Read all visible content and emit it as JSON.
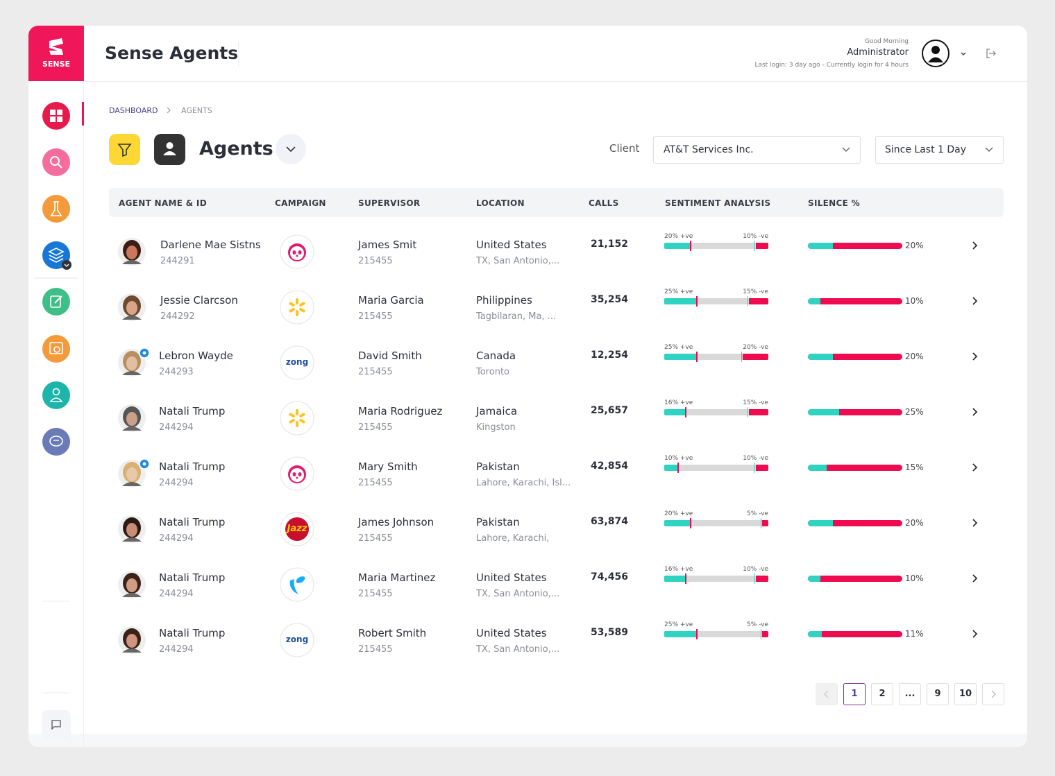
{
  "brand": "SENSE",
  "header": {
    "title": "Sense Agents",
    "greeting": "Good Morning",
    "user": "Administrator",
    "status": "Last login: 3 day ago  -  Currently login for 4 hours"
  },
  "breadcrumb": [
    "DASHBOARD",
    "AGENTS"
  ],
  "page": {
    "title": "Agents",
    "client_label": "Client",
    "client": "AT&T Services Inc.",
    "period": "Since Last 1 Day"
  },
  "table": {
    "columns": [
      "AGENT NAME & ID",
      "CAMPAIGN",
      "SUPERVISOR",
      "LOCATION",
      "CALLS",
      "SENTIMENT ANALYSIS",
      "SILENCE %"
    ],
    "rows": [
      {
        "name": "Darlene Mae Sistns",
        "id": "244291",
        "supervisor": "James Smit",
        "supervisor_id": "215455",
        "country": "United States",
        "city": "TX, San Antonio,...",
        "calls": "21,152",
        "positive": {
          "value": 20,
          "label": "20% +ve"
        },
        "negative": {
          "value": 10,
          "label": "10% -ve"
        },
        "silence": {
          "value": 20,
          "label": "20%"
        }
      },
      {
        "name": "Jessie Clarcson",
        "id": "244292",
        "supervisor": "Maria Garcia",
        "supervisor_id": "215455",
        "country": "Philippines",
        "city": "Tagbilaran, Ma, ...",
        "calls": "35,254",
        "positive": {
          "value": 25,
          "label": "25% +ve"
        },
        "negative": {
          "value": 15,
          "label": "15% -ve"
        },
        "silence": {
          "value": 10,
          "label": "10%"
        }
      },
      {
        "name": "Lebron Wayde",
        "id": "244293",
        "campaign": "zong",
        "supervisor": "David Smith",
        "supervisor_id": "215455",
        "country": "Canada",
        "city": "Toronto",
        "calls": "12,254",
        "positive": {
          "value": 25,
          "label": "25% +ve"
        },
        "negative": {
          "value": 20,
          "label": "20% -ve"
        },
        "silence": {
          "value": 20,
          "label": "20%"
        }
      },
      {
        "name": "Natali Trump",
        "id": "244294",
        "supervisor": "Maria Rodriguez",
        "supervisor_id": "215455",
        "country": "Jamaica",
        "city": "Kingston",
        "calls": "25,657",
        "positive": {
          "value": 16,
          "label": "16% +ve"
        },
        "negative": {
          "value": 15,
          "label": "15% -ve"
        },
        "silence": {
          "value": 25,
          "label": "25%"
        }
      },
      {
        "name": "Natali Trump",
        "id": "244294",
        "supervisor": "Mary Smith",
        "supervisor_id": "215455",
        "country": "Pakistan",
        "city": "Lahore, Karachi, Isl...",
        "calls": "42,854",
        "positive": {
          "value": 10,
          "label": "10% +ve"
        },
        "negative": {
          "value": 10,
          "label": "10% -ve"
        },
        "silence": {
          "value": 15,
          "label": "15%"
        }
      },
      {
        "name": "Natali Trump",
        "id": "244294",
        "campaign": "Jazz",
        "supervisor": "James Johnson",
        "supervisor_id": "215455",
        "country": "Pakistan",
        "city": "Lahore, Karachi,",
        "calls": "63,874",
        "positive": {
          "value": 20,
          "label": "20% +ve"
        },
        "negative": {
          "value": 5,
          "label": "5% -ve"
        },
        "silence": {
          "value": 20,
          "label": "20%"
        }
      },
      {
        "name": "Natali Trump",
        "id": "244294",
        "supervisor": "Maria Martinez",
        "supervisor_id": "215455",
        "country": "United States",
        "city": "TX, San Antonio,...",
        "calls": "74,456",
        "positive": {
          "value": 16,
          "label": "16% +ve"
        },
        "negative": {
          "value": 10,
          "label": "10% -ve"
        },
        "silence": {
          "value": 10,
          "label": "10%"
        }
      },
      {
        "name": "Natali Trump",
        "id": "244294",
        "campaign": "zong",
        "supervisor": "Robert Smith",
        "supervisor_id": "215455",
        "country": "United States",
        "city": "TX, San Antonio,...",
        "calls": "53,589",
        "positive": {
          "value": 25,
          "label": "25% +ve"
        },
        "negative": {
          "value": 5,
          "label": "5% -ve"
        },
        "silence": {
          "value": 11,
          "label": "11%"
        }
      }
    ]
  },
  "pagination": [
    "1",
    "2",
    "...",
    "9",
    "10"
  ]
}
